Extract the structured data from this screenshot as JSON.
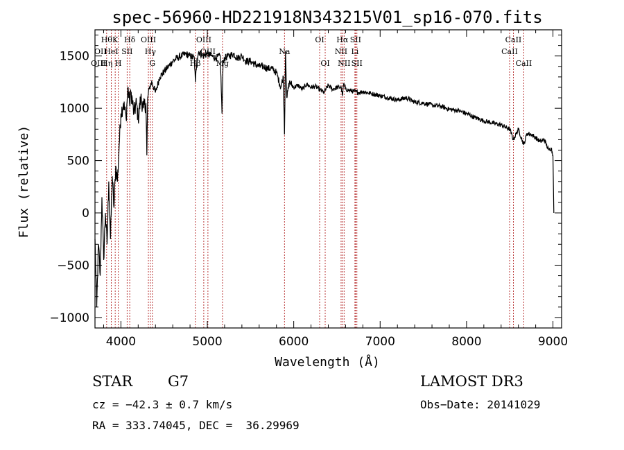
{
  "chart_data": {
    "type": "line",
    "title": "spec-56960-HD221918N343215V01_sp16-070.fits",
    "xlabel": "Wavelength (Å)",
    "ylabel": "Flux (relative)",
    "xlim": [
      3700,
      9100
    ],
    "ylim": [
      -1100,
      1750
    ],
    "xticks": [
      4000,
      5000,
      6000,
      7000,
      8000,
      9000
    ],
    "yticks": [
      -1000,
      -500,
      0,
      500,
      1000,
      1500
    ],
    "x_tick_labels": [
      "4000",
      "5000",
      "6000",
      "7000",
      "8000",
      "9000"
    ],
    "y_tick_labels": [
      "−1000",
      "−500",
      "0",
      "500",
      "1000",
      "1500"
    ],
    "grid": false,
    "series": [
      {
        "color": "#000000",
        "x": [
          3700,
          3720,
          3740,
          3760,
          3780,
          3800,
          3820,
          3840,
          3860,
          3880,
          3900,
          3920,
          3940,
          3960,
          3980,
          4000,
          4030,
          4060,
          4080,
          4100,
          4120,
          4150,
          4180,
          4200,
          4230,
          4260,
          4290,
          4300,
          4310,
          4330,
          4360,
          4400,
          4450,
          4500,
          4550,
          4600,
          4650,
          4700,
          4750,
          4800,
          4850,
          4862,
          4880,
          4900,
          4950,
          5000,
          5050,
          5100,
          5150,
          5170,
          5183,
          5200,
          5250,
          5300,
          5350,
          5400,
          5450,
          5500,
          5550,
          5600,
          5650,
          5700,
          5750,
          5800,
          5850,
          5880,
          5893,
          5905,
          5920,
          5950,
          6000,
          6050,
          6100,
          6150,
          6200,
          6250,
          6300,
          6350,
          6400,
          6450,
          6500,
          6550,
          6563,
          6580,
          6600,
          6650,
          6700,
          6750,
          6800,
          6900,
          7000,
          7100,
          7200,
          7300,
          7400,
          7500,
          7600,
          7700,
          7800,
          7900,
          8000,
          8100,
          8200,
          8300,
          8400,
          8500,
          8542,
          8600,
          8662,
          8700,
          8750,
          8800,
          8850,
          8900,
          8950,
          8980,
          9000,
          9010
        ],
        "y": [
          -250,
          -900,
          -300,
          -600,
          150,
          -450,
          0,
          -300,
          300,
          -250,
          350,
          50,
          450,
          300,
          650,
          950,
          1050,
          900,
          1200,
          1050,
          1150,
          950,
          1050,
          900,
          1100,
          1000,
          1050,
          550,
          1100,
          1200,
          1250,
          1150,
          1300,
          1350,
          1400,
          1450,
          1480,
          1500,
          1520,
          1500,
          1480,
          1250,
          1480,
          1540,
          1500,
          1520,
          1500,
          1480,
          1500,
          950,
          1450,
          1480,
          1500,
          1520,
          1480,
          1500,
          1450,
          1450,
          1420,
          1400,
          1400,
          1380,
          1380,
          1340,
          1200,
          1300,
          750,
          1550,
          1100,
          1250,
          1200,
          1220,
          1180,
          1230,
          1200,
          1210,
          1180,
          1150,
          1220,
          1180,
          1200,
          1200,
          1120,
          1240,
          1180,
          1170,
          1160,
          1150,
          1160,
          1140,
          1120,
          1100,
          1080,
          1100,
          1060,
          1050,
          1030,
          1020,
          990,
          980,
          950,
          910,
          880,
          860,
          840,
          800,
          700,
          800,
          650,
          760,
          750,
          720,
          680,
          700,
          600,
          620,
          550,
          0
        ]
      }
    ],
    "line_markers": [
      {
        "x": 3835,
        "label": "Hθ",
        "row": 0
      },
      {
        "x": 3889,
        "label": "HeI",
        "row": 1
      },
      {
        "x": 3934,
        "label": "K",
        "row": 0
      },
      {
        "x": 3970,
        "label": "H",
        "row": 2
      },
      {
        "x": 4072,
        "label": "SII",
        "row": 1
      },
      {
        "x": 4102,
        "label": "Hδ",
        "row": 0
      },
      {
        "x": 4318,
        "label": "OIII",
        "row": 0
      },
      {
        "x": 4341,
        "label": "Hγ",
        "row": 1
      },
      {
        "x": 4364,
        "label": "G",
        "row": 2
      },
      {
        "x": 4861,
        "label": "Hβ",
        "row": 2
      },
      {
        "x": 4959,
        "label": "OIII",
        "row": 0
      },
      {
        "x": 5007,
        "label": "OIII",
        "row": 1
      },
      {
        "x": 5176,
        "label": "Mg",
        "row": 2
      },
      {
        "x": 5893,
        "label": "Na",
        "row": 1
      },
      {
        "x": 6300,
        "label": "OI",
        "row": 0
      },
      {
        "x": 6364,
        "label": "OI",
        "row": 2
      },
      {
        "x": 6548,
        "label": "NII",
        "row": 1
      },
      {
        "x": 6563,
        "label": "Hα",
        "row": 0
      },
      {
        "x": 6583,
        "label": "NII",
        "row": 2
      },
      {
        "x": 6708,
        "label": "Li",
        "row": 1
      },
      {
        "x": 6716,
        "label": "SII",
        "row": 0
      },
      {
        "x": 6731,
        "label": "SII",
        "row": 2
      },
      {
        "x": 8498,
        "label": "CaII",
        "row": 1
      },
      {
        "x": 8542,
        "label": "CaII",
        "row": 0
      },
      {
        "x": 8662,
        "label": "CaII",
        "row": 2
      }
    ],
    "marker_extra_left_labels": [
      {
        "label": "OII",
        "row": 1
      },
      {
        "label": "OIII",
        "row": 2
      },
      {
        "label": "Hη",
        "row": 2
      }
    ]
  },
  "info": {
    "object_class": "STAR",
    "subclass": "G7",
    "survey": "LAMOST DR3",
    "cz": "cz = −42.3 ± 0.7 km/s",
    "obs_date": "Obs−Date: 20141029",
    "radec": "RA = 333.74045, DEC =  36.29969"
  },
  "colors": {
    "axis": "#000000",
    "spectrum": "#000000",
    "marker_line": "#b22222"
  }
}
